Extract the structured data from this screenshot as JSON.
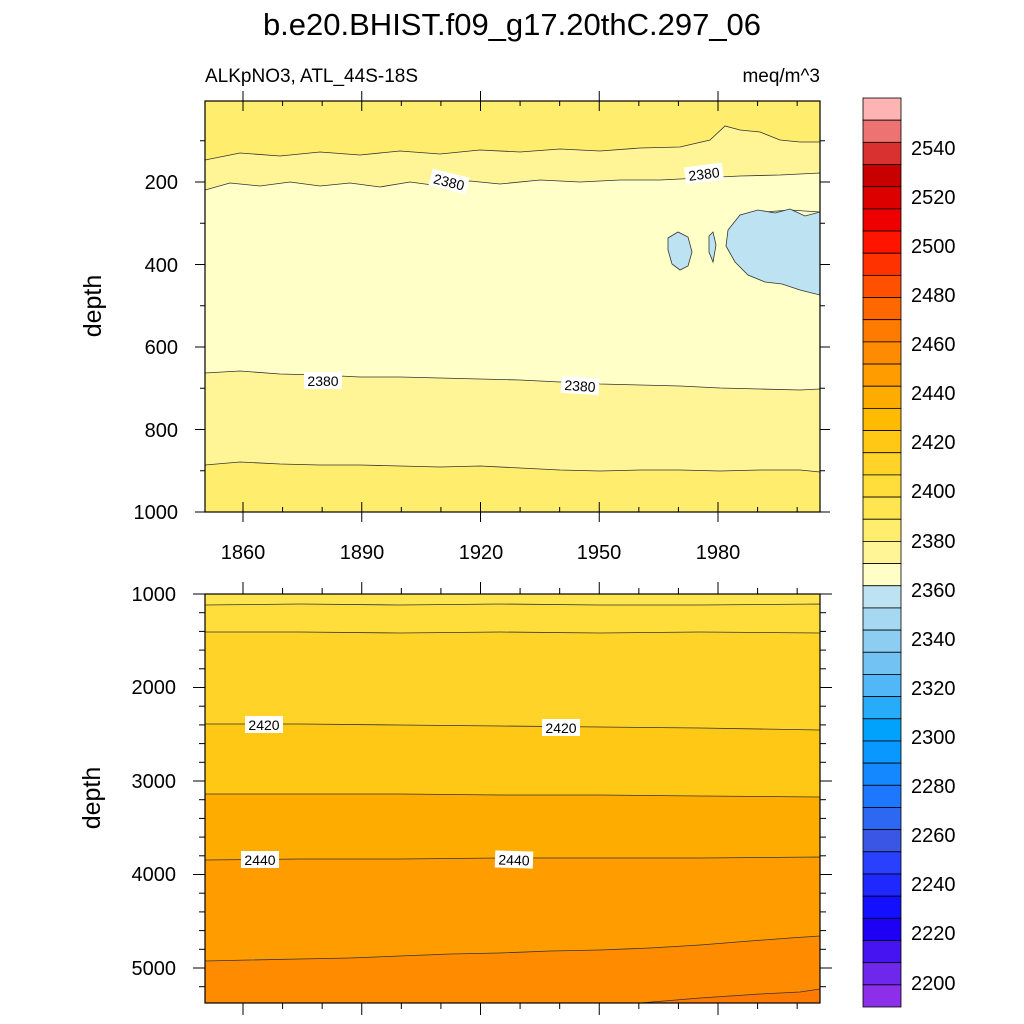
{
  "chart_data": {
    "type": "heatmap",
    "title": "b.e20.BHIST.f09_g17.20thC.297_06",
    "variable_label": "ALKpNO3, ATL_44S-18S",
    "units_label": "meq/m^3",
    "panels": [
      {
        "name": "upper",
        "ylabel": "depth",
        "yticks": [
          "200",
          "400",
          "600",
          "800",
          "1000"
        ],
        "ylim": [
          0,
          1000
        ],
        "xticks": [
          "1860",
          "1890",
          "1920",
          "1950",
          "1980"
        ],
        "xlim": [
          1850,
          2005
        ],
        "contour_labels": [
          "2380",
          "2380",
          "2380",
          "2380"
        ],
        "bands_top_to_bottom": [
          {
            "value_range": [
              2390,
              2395
            ],
            "depth_from": 0,
            "depth_to": 145
          },
          {
            "value_range": [
              2385,
              2390
            ],
            "depth_from": 145,
            "depth_to": 185
          },
          {
            "value_range": [
              2375,
              2380
            ],
            "depth_from": 185,
            "depth_to": 680
          },
          {
            "value_range": [
              2385,
              2390
            ],
            "depth_from": 680,
            "depth_to": 895
          },
          {
            "value_range": [
              2390,
              2395
            ],
            "depth_from": 895,
            "depth_to": 1000
          }
        ],
        "low_patches": [
          {
            "value_range": [
              2365,
              2370
            ],
            "years": [
              1965,
              2005
            ],
            "depth": [
              270,
              480
            ]
          }
        ]
      },
      {
        "name": "lower",
        "ylabel": "depth",
        "yticks": [
          "1000",
          "2000",
          "3000",
          "4000",
          "5000"
        ],
        "ylim": [
          1000,
          5375
        ],
        "contour_labels": [
          "2420",
          "2420",
          "2440",
          "2440"
        ],
        "bands_top_to_bottom": [
          {
            "value_range": [
              2395,
              2400
            ],
            "depth_from": 1000,
            "depth_to": 1100
          },
          {
            "value_range": [
              2400,
              2405
            ],
            "depth_from": 1100,
            "depth_to": 1400
          },
          {
            "value_range": [
              2405,
              2410
            ],
            "depth_from": 1400,
            "depth_to": 2420
          },
          {
            "value_range": [
              2410,
              2415
            ],
            "depth_from": 2420,
            "depth_to": 3150
          },
          {
            "value_range": [
              2420,
              2425
            ],
            "depth_from": 3150,
            "depth_to": 3850
          },
          {
            "value_range": [
              2430,
              2435
            ],
            "depth_from": 3850,
            "depth_to": 4950
          },
          {
            "value_range": [
              2440,
              2445
            ],
            "depth_from": 4950,
            "depth_to": 5375
          }
        ]
      }
    ],
    "colorbar": {
      "labels": [
        "2540",
        "2520",
        "2500",
        "2480",
        "2460",
        "2440",
        "2420",
        "2400",
        "2380",
        "2360",
        "2340",
        "2320",
        "2300",
        "2280",
        "2260",
        "2240",
        "2220",
        "2200"
      ],
      "colors_top_to_bottom": [
        "#ffb4b4",
        "#ed7272",
        "#d93030",
        "#c80000",
        "#dd0000",
        "#ee0000",
        "#ff1400",
        "#ff3200",
        "#ff5000",
        "#ff6800",
        "#ff7a00",
        "#ff8c00",
        "#ff9c00",
        "#ffac00",
        "#ffbb00",
        "#ffc814",
        "#ffd328",
        "#ffde3c",
        "#ffe650",
        "#ffee6e",
        "#fff596",
        "#ffffc8",
        "#bde3f3",
        "#a6d8f1",
        "#8dcdf2",
        "#72c2f4",
        "#51b7f6",
        "#26acf8",
        "#00a2fb",
        "#0898ff",
        "#1488ff",
        "#1e78ff",
        "#2d68f2",
        "#3a56e4",
        "#2a40ff",
        "#1f28ff",
        "#1410ff",
        "#1e00f4",
        "#4614f0",
        "#6e28ec",
        "#8c2eea"
      ]
    }
  }
}
